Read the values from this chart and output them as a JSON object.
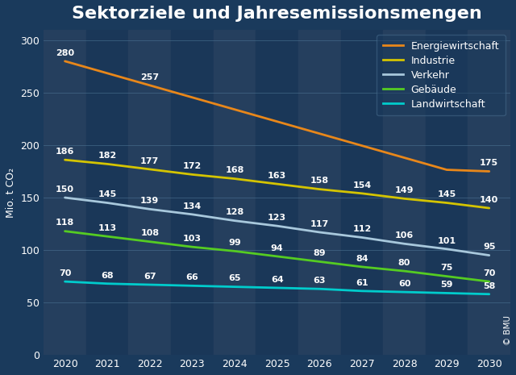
{
  "title": "Sektorziele und Jahresemissionsmengen",
  "ylabel": "Mio. t CO₂",
  "copyright": "© BMU",
  "years": [
    2020,
    2021,
    2022,
    2023,
    2024,
    2025,
    2026,
    2027,
    2028,
    2029,
    2030
  ],
  "series": [
    {
      "label": "Energiewirtschaft",
      "color": "#E8871A",
      "values": [
        280,
        null,
        257,
        null,
        null,
        null,
        null,
        null,
        null,
        null,
        175
      ],
      "all_values": [
        280,
        268.5,
        257,
        245.5,
        234,
        222.5,
        211,
        199.5,
        188,
        176.5,
        175
      ]
    },
    {
      "label": "Industrie",
      "color": "#D4C400",
      "values": [
        186,
        182,
        177,
        172,
        168,
        163,
        158,
        154,
        149,
        145,
        140
      ],
      "all_values": [
        186,
        182,
        177,
        172,
        168,
        163,
        158,
        154,
        149,
        145,
        140
      ]
    },
    {
      "label": "Verkehr",
      "color": "#A8C8DC",
      "values": [
        150,
        145,
        139,
        134,
        128,
        123,
        117,
        112,
        106,
        101,
        95
      ],
      "all_values": [
        150,
        145,
        139,
        134,
        128,
        123,
        117,
        112,
        106,
        101,
        95
      ]
    },
    {
      "label": "Gebäude",
      "color": "#55CC22",
      "values": [
        118,
        113,
        108,
        103,
        99,
        94,
        89,
        84,
        80,
        75,
        70
      ],
      "all_values": [
        118,
        113,
        108,
        103,
        99,
        94,
        89,
        84,
        80,
        75,
        70
      ]
    },
    {
      "label": "Landwirtschaft",
      "color": "#00CCCC",
      "values": [
        70,
        68,
        67,
        66,
        65,
        64,
        63,
        61,
        60,
        59,
        58
      ],
      "all_values": [
        70,
        68,
        67,
        66,
        65,
        64,
        63,
        61,
        60,
        59,
        58
      ]
    }
  ],
  "bg_color": "#1a3a5c",
  "plot_bg_color": "#1e4060",
  "stripe_color_even": "#253f5e",
  "stripe_color_odd": "#1a3758",
  "grid_color": "#4a7090",
  "text_color": "#ffffff",
  "ylim": [
    0,
    310
  ],
  "yticks": [
    0,
    50,
    100,
    150,
    200,
    250,
    300
  ],
  "title_fontsize": 16,
  "label_fontsize": 8,
  "axis_fontsize": 9,
  "legend_fontsize": 9
}
